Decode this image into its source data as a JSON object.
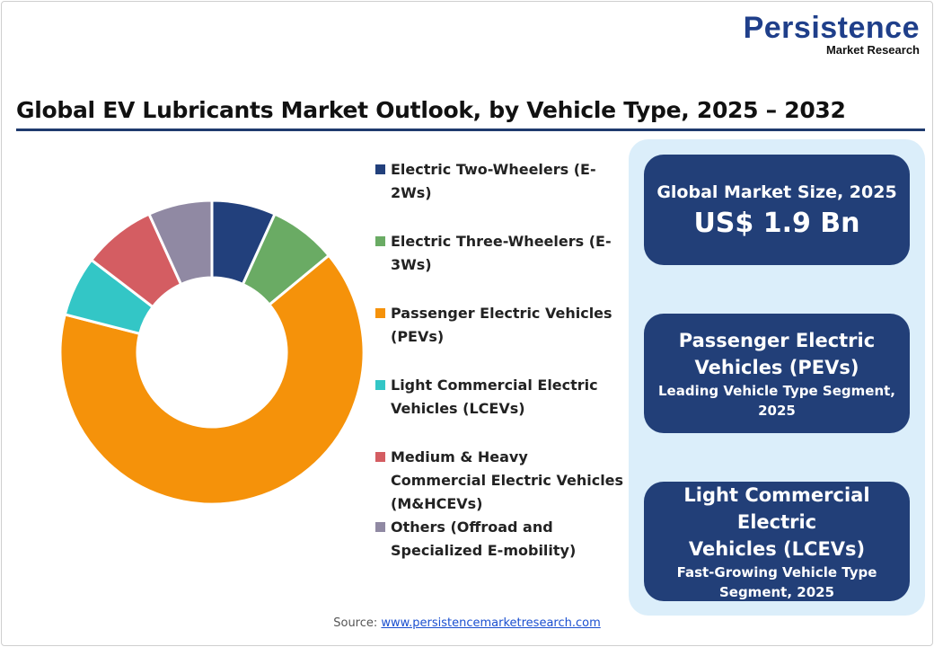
{
  "logo": {
    "line1": "Persistence",
    "line2": "Market Research"
  },
  "chart_data": {
    "type": "pie",
    "style": "donut",
    "title": "Global EV Lubricants Market Outlook, by Vehicle Type, 2025 – 2032",
    "legend_placement": "right",
    "categories": [
      "Electric Two-Wheelers (E-2Ws)",
      "Electric Three-Wheelers (E-3Ws)",
      "Passenger Electric Vehicles (PEVs)",
      "Light Commercial Electric Vehicles (LCEVs)",
      "Medium & Heavy Commercial Electric Vehicles (M&HCEVs)",
      "Others (Offroad and Specialized E-mobility)"
    ],
    "values": [
      6.8,
      7.2,
      65.0,
      6.4,
      7.8,
      6.8
    ],
    "colors": [
      "#22407c",
      "#6aab64",
      "#f5920a",
      "#33c6c6",
      "#d45d62",
      "#9089a3"
    ]
  },
  "legend": {
    "items": [
      {
        "line1": "Electric Two-Wheelers (E-",
        "line2": "2Ws)"
      },
      {
        "line1": "Electric Three-Wheelers (E-",
        "line2": "3Ws)"
      },
      {
        "line1": "Passenger Electric Vehicles",
        "line2": "(PEVs)"
      },
      {
        "line1": "Light Commercial Electric",
        "line2": "Vehicles (LCEVs)"
      },
      {
        "line1": "Medium & Heavy",
        "line2": "Commercial Electric Vehicles",
        "line3": "(M&HCEVs)"
      },
      {
        "line1": "Others (Offroad and",
        "line2": "Specialized E-mobility)"
      }
    ]
  },
  "cards": [
    {
      "label": "Global Market Size, 2025",
      "value": "US$ 1.9 Bn"
    },
    {
      "title1": "Passenger Electric",
      "title2": "Vehicles (PEVs)",
      "sub1": "Leading Vehicle Type Segment,",
      "sub2": "2025"
    },
    {
      "title1": "Light Commercial Electric",
      "title2": "Vehicles (LCEVs)",
      "sub1": "Fast-Growing Vehicle Type",
      "sub2": "Segment, 2025"
    }
  ],
  "source": {
    "label": "Source:",
    "link": "www.persistencemarketresearch.com"
  }
}
